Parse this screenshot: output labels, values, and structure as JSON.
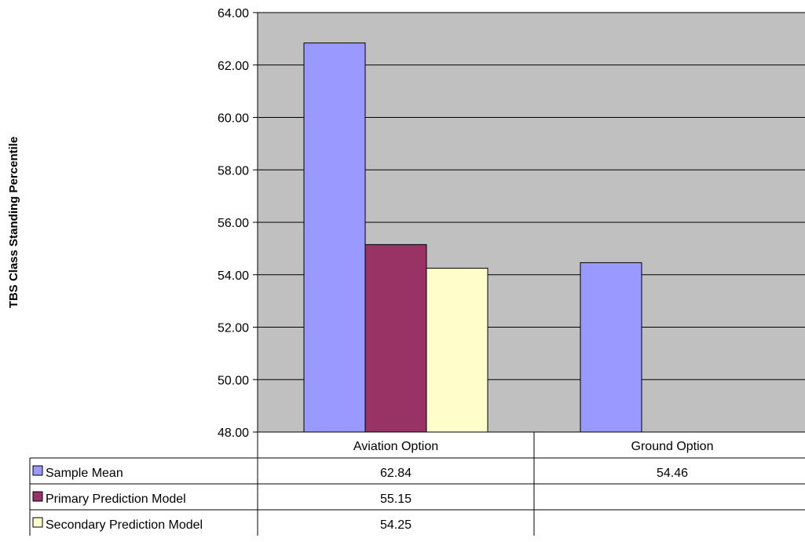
{
  "chart_data": {
    "type": "bar",
    "ylabel": "TBS Class Standing Percentile",
    "xlabel": "",
    "ylim": [
      48,
      64
    ],
    "yticks": [
      "48.00",
      "50.00",
      "52.00",
      "54.00",
      "56.00",
      "58.00",
      "60.00",
      "62.00",
      "64.00"
    ],
    "grid": true,
    "legend": "data-table",
    "categories": [
      "Aviation Option",
      "Ground Option"
    ],
    "series": [
      {
        "name": "Sample Mean",
        "color": "#9999ff",
        "values": [
          62.84,
          54.46
        ],
        "labels": [
          "62.84",
          "54.46"
        ]
      },
      {
        "name": "Primary Prediction Model",
        "color": "#993366",
        "values": [
          55.15,
          null
        ],
        "labels": [
          "55.15",
          ""
        ]
      },
      {
        "name": "Secondary Prediction Model",
        "color": "#ffffcc",
        "values": [
          54.25,
          null
        ],
        "labels": [
          "54.25",
          ""
        ]
      }
    ],
    "plot_background": "#c0c0c0"
  }
}
